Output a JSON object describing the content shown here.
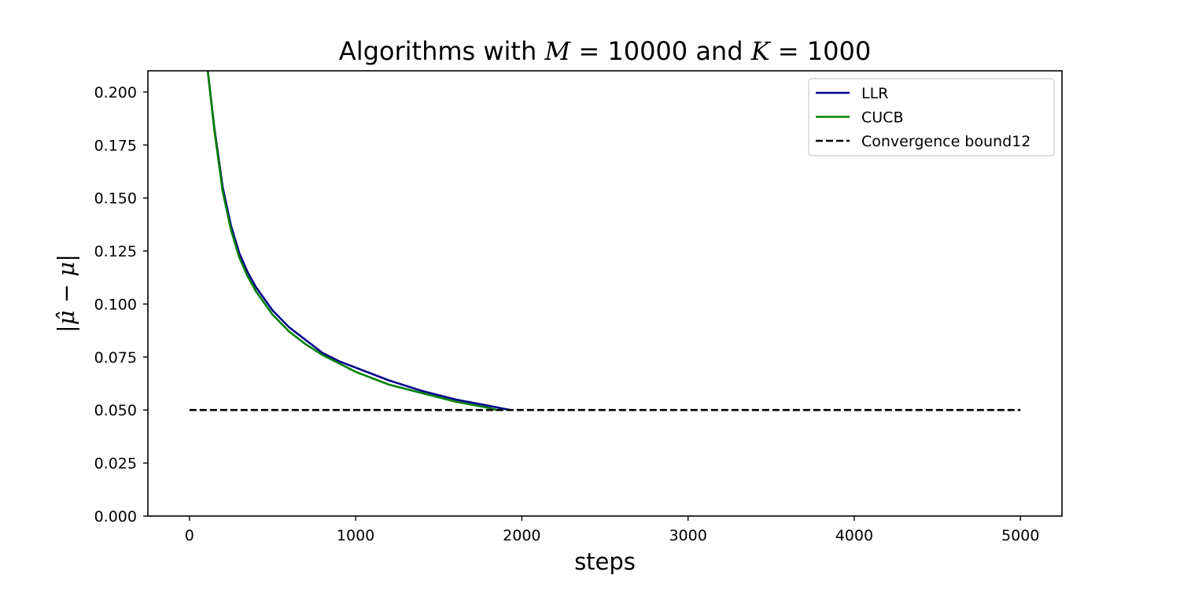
{
  "chart_data": {
    "type": "line",
    "title": {
      "prefix": "Algorithms with ",
      "m_var": "M",
      "m_eq": " = 10000",
      "middle": " and ",
      "k_var": "K",
      "k_eq": " = 1000"
    },
    "xlabel": "steps",
    "ylabel": "|μ̂ − μ|",
    "xlim": [
      -250,
      5250
    ],
    "ylim": [
      0.0,
      0.21
    ],
    "xticks": [
      0,
      1000,
      2000,
      3000,
      4000,
      5000
    ],
    "xtick_labels": [
      "0",
      "1000",
      "2000",
      "3000",
      "4000",
      "5000"
    ],
    "yticks": [
      0.0,
      0.025,
      0.05,
      0.075,
      0.1,
      0.125,
      0.15,
      0.175,
      0.2
    ],
    "ytick_labels": [
      "0.000",
      "0.025",
      "0.050",
      "0.075",
      "0.100",
      "0.125",
      "0.150",
      "0.175",
      "0.200"
    ],
    "grid": false,
    "legend_position": "top-right",
    "series": [
      {
        "name": "LLR",
        "color": "#00008b",
        "style": "solid",
        "x": [
          110,
          150,
          200,
          250,
          300,
          350,
          400,
          500,
          600,
          700,
          800,
          900,
          1000,
          1200,
          1400,
          1600,
          1800,
          1930
        ],
        "y": [
          0.21,
          0.183,
          0.155,
          0.137,
          0.124,
          0.115,
          0.108,
          0.097,
          0.089,
          0.083,
          0.077,
          0.073,
          0.07,
          0.064,
          0.059,
          0.055,
          0.052,
          0.05
        ]
      },
      {
        "name": "CUCB",
        "color": "#008000",
        "style": "solid",
        "x": [
          110,
          150,
          200,
          250,
          300,
          350,
          400,
          500,
          600,
          700,
          800,
          900,
          1000,
          1200,
          1400,
          1600,
          1800,
          1850
        ],
        "y": [
          0.21,
          0.182,
          0.153,
          0.135,
          0.122,
          0.113,
          0.106,
          0.095,
          0.087,
          0.081,
          0.076,
          0.072,
          0.068,
          0.062,
          0.058,
          0.054,
          0.051,
          0.05
        ]
      },
      {
        "name": "Convergence bound12",
        "color": "#000000",
        "style": "dashed",
        "x": [
          0,
          5000
        ],
        "y": [
          0.05,
          0.05
        ]
      }
    ]
  }
}
